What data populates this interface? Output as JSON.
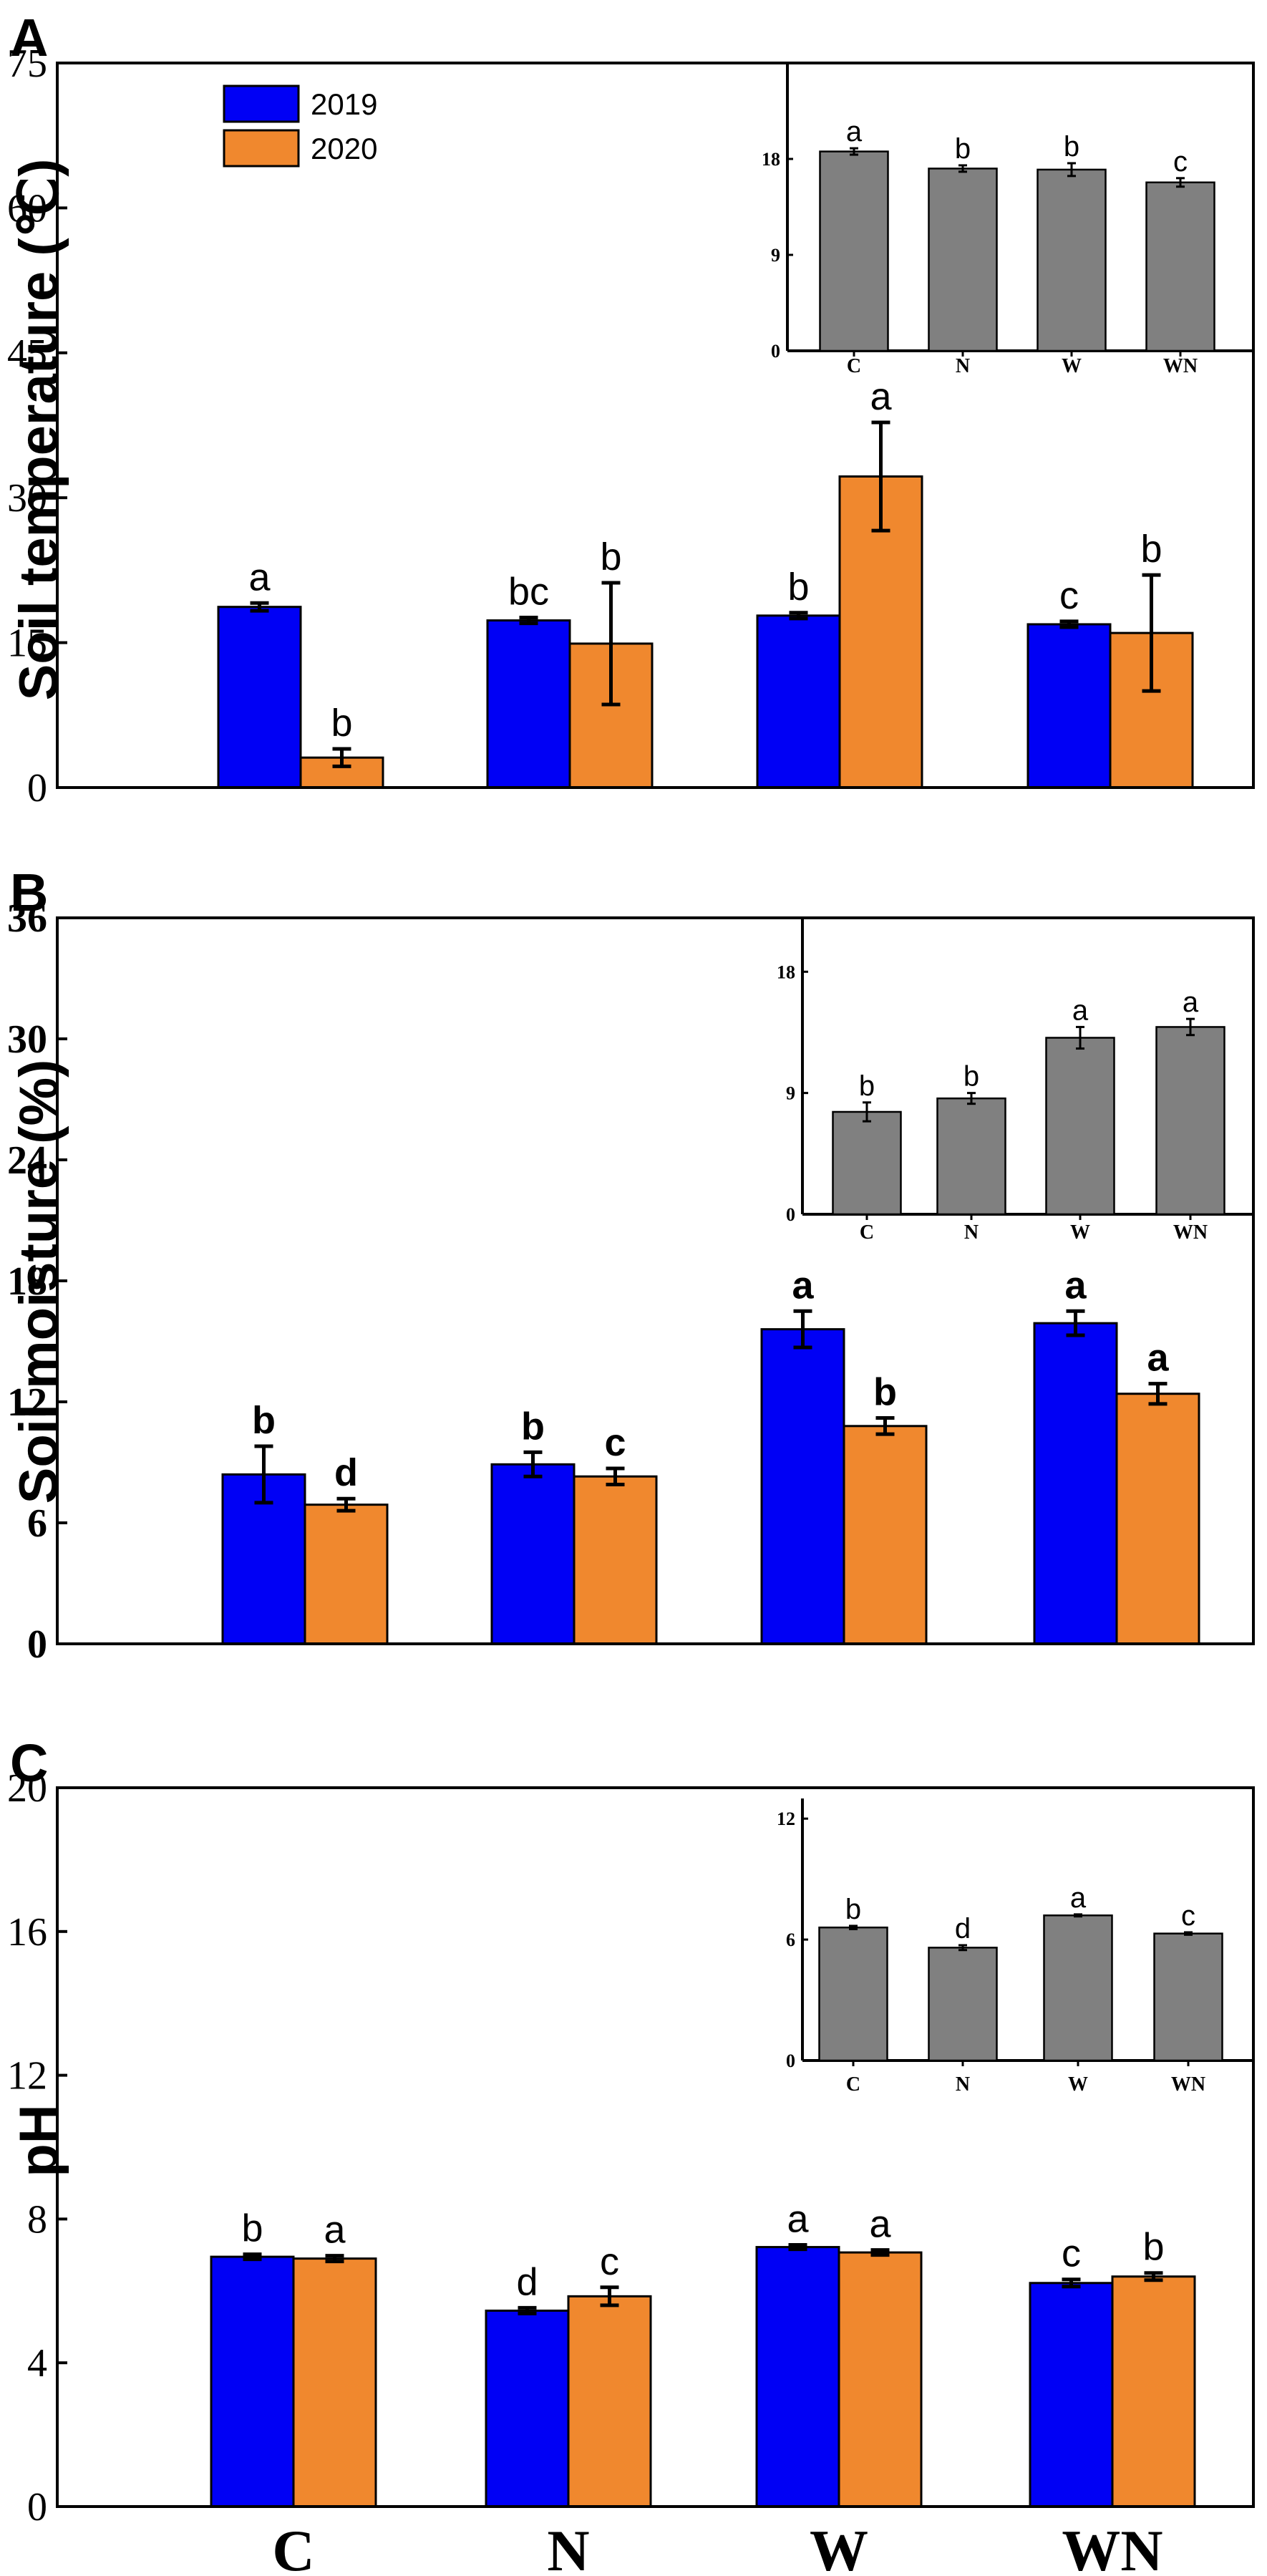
{
  "colors": {
    "y2019": "#0000F5",
    "y2020": "#F0882E",
    "inset": "#808080",
    "axis": "#000000"
  },
  "legend": {
    "label_2019": "2019",
    "label_2020": "2020"
  },
  "categories": [
    "C",
    "N",
    "W",
    "WN"
  ],
  "chart_data": [
    {
      "type": "bar",
      "panel": "A",
      "ylabel": "Soil temperature (℃)",
      "ylim": [
        0,
        75
      ],
      "yticks": [
        "0",
        "15",
        "30",
        "45",
        "60",
        "75"
      ],
      "categories": [
        "C",
        "N",
        "W",
        "WN"
      ],
      "letter_style": "normal",
      "series": [
        {
          "name": "2019",
          "values": [
            18.7,
            17.3,
            17.8,
            16.9
          ],
          "errors": [
            0.4,
            0.3,
            0.3,
            0.3
          ],
          "letters": [
            "a",
            "bc",
            "b",
            "c"
          ]
        },
        {
          "name": "2020",
          "values": [
            3.1,
            14.9,
            32.2,
            16.0
          ],
          "errors": [
            0.9,
            6.3,
            5.6,
            6.0
          ],
          "letters": [
            "b",
            "b",
            "a",
            "b"
          ]
        }
      ],
      "inset": {
        "type": "bar",
        "ylim": [
          0,
          27
        ],
        "yticks": [
          "0",
          "9",
          "18"
        ],
        "categories": [
          "C",
          "N",
          "W",
          "WN"
        ],
        "values": [
          18.7,
          17.1,
          17.0,
          15.8
        ],
        "errors": [
          0.3,
          0.3,
          0.6,
          0.4
        ],
        "letters": [
          "a",
          "b",
          "b",
          "c"
        ]
      }
    },
    {
      "type": "bar",
      "panel": "B",
      "ylabel": "Soil moisture (%)",
      "ylim": [
        0,
        36
      ],
      "yticks": [
        "0",
        "6",
        "12",
        "18",
        "24",
        "30",
        "36"
      ],
      "categories": [
        "C",
        "N",
        "W",
        "WN"
      ],
      "letter_style": "bold",
      "series": [
        {
          "name": "2019",
          "values": [
            8.4,
            8.9,
            15.6,
            15.9
          ],
          "errors": [
            1.4,
            0.6,
            0.9,
            0.6
          ],
          "letters": [
            "b",
            "b",
            "a",
            "a"
          ]
        },
        {
          "name": "2020",
          "values": [
            6.9,
            8.3,
            10.8,
            12.4
          ],
          "errors": [
            0.3,
            0.4,
            0.4,
            0.5
          ],
          "letters": [
            "d",
            "c",
            "b",
            "a"
          ]
        }
      ],
      "inset": {
        "type": "bar",
        "ylim": [
          0,
          22
        ],
        "yticks": [
          "0",
          "9",
          "18"
        ],
        "categories": [
          "C",
          "N",
          "W",
          "WN"
        ],
        "values": [
          7.6,
          8.6,
          13.1,
          13.9
        ],
        "errors": [
          0.7,
          0.4,
          0.8,
          0.6
        ],
        "letters": [
          "b",
          "b",
          "a",
          "a"
        ]
      }
    },
    {
      "type": "bar",
      "panel": "C",
      "ylabel": "pH",
      "ylim": [
        0,
        20
      ],
      "yticks": [
        "0",
        "4",
        "8",
        "12",
        "16",
        "20"
      ],
      "categories": [
        "C",
        "N",
        "W",
        "WN"
      ],
      "letter_style": "normal",
      "series": [
        {
          "name": "2019",
          "values": [
            6.95,
            5.45,
            7.22,
            6.22
          ],
          "errors": [
            0.07,
            0.08,
            0.06,
            0.1
          ],
          "letters": [
            "b",
            "d",
            "a",
            "c"
          ]
        },
        {
          "name": "2020",
          "values": [
            6.9,
            5.85,
            7.07,
            6.4
          ],
          "errors": [
            0.08,
            0.25,
            0.07,
            0.1
          ],
          "letters": [
            "a",
            "c",
            "a",
            "b"
          ]
        }
      ],
      "inset": {
        "type": "bar",
        "ylim": [
          0,
          13
        ],
        "yticks": [
          "0",
          "6",
          "12"
        ],
        "categories": [
          "C",
          "N",
          "W",
          "WN"
        ],
        "values": [
          6.6,
          5.6,
          7.2,
          6.3
        ],
        "errors": [
          0.08,
          0.12,
          0.05,
          0.06
        ],
        "letters": [
          "b",
          "d",
          "a",
          "c"
        ]
      }
    }
  ]
}
